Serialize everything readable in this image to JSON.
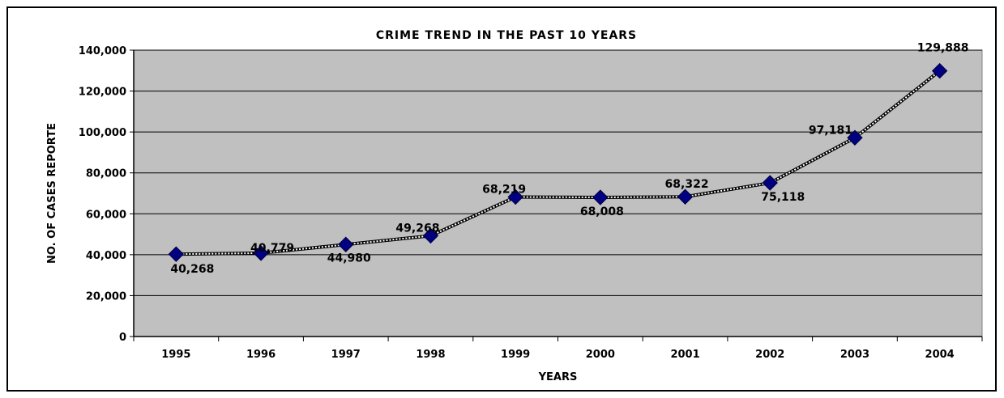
{
  "chart_data": {
    "type": "line",
    "title": "CRIME TREND IN THE PAST 10 YEARS",
    "xlabel": "YEARS",
    "ylabel": "NO. OF CASES REPORTE",
    "categories": [
      "1995",
      "1996",
      "1997",
      "1998",
      "1999",
      "2000",
      "2001",
      "2002",
      "2003",
      "2004"
    ],
    "values": [
      40268,
      40779,
      44980,
      49268,
      68219,
      68008,
      68322,
      75118,
      97181,
      129888
    ],
    "data_labels": [
      "40,268",
      "40,779",
      "44,980",
      "49,268",
      "68,219",
      "68,008",
      "68,322",
      "75,118",
      "97,181",
      "129,888"
    ],
    "ylim": [
      0,
      140000
    ],
    "yticks": [
      0,
      20000,
      40000,
      60000,
      80000,
      100000,
      120000,
      140000
    ],
    "ytick_labels": [
      "0",
      "20,000",
      "40,000",
      "60,000",
      "80,000",
      "100,000",
      "120,000",
      "140,000"
    ],
    "grid": true,
    "legend": "none",
    "colors": {
      "plot_background": "#c0c0c0",
      "marker": "#000080",
      "line": "#000000",
      "gridline": "#000000"
    }
  }
}
